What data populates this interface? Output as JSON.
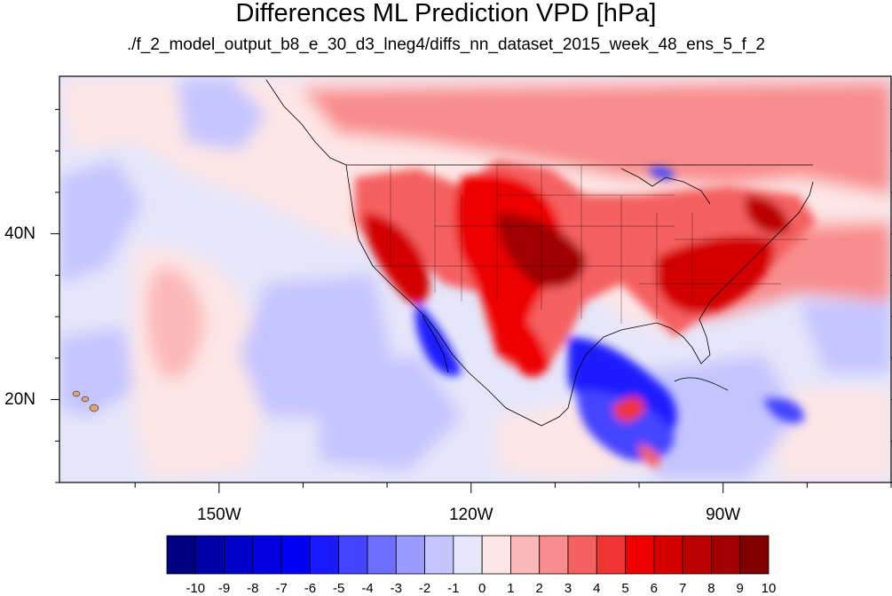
{
  "title": "Differences ML Prediction VPD [hPa]",
  "subtitle": "./f_2_model_output_b8_e_30_d3_lneg4/diffs_nn_dataset_2015_week_48_ens_5_f_2",
  "map": {
    "lon_range": [
      -169,
      -70
    ],
    "lat_range": [
      10,
      59
    ],
    "x_tick_labels": [
      {
        "lon": -150,
        "label": "150W"
      },
      {
        "lon": -120,
        "label": "120W"
      },
      {
        "lon": -90,
        "label": "90W"
      }
    ],
    "y_tick_labels": [
      {
        "lat": 40,
        "label": "40N"
      },
      {
        "lat": 20,
        "label": "20N"
      }
    ]
  },
  "colorbar": {
    "labels": [
      "-10",
      "-9",
      "-8",
      "-7",
      "-6",
      "-5",
      "-4",
      "-3",
      "-2",
      "-1",
      "0",
      "1",
      "2",
      "3",
      "4",
      "5",
      "6",
      "7",
      "8",
      "9",
      "10"
    ],
    "colors": [
      "#000080",
      "#0000a8",
      "#0000c8",
      "#0000e0",
      "#0000f5",
      "#1a1aff",
      "#4444ff",
      "#6e6eff",
      "#9a9aff",
      "#c4c4ff",
      "#e6e6fa",
      "#fde6e6",
      "#fcb8b8",
      "#f98c8c",
      "#f56060",
      "#f03434",
      "#ee0000",
      "#d40000",
      "#bb0000",
      "#a10000",
      "#800000"
    ]
  }
}
